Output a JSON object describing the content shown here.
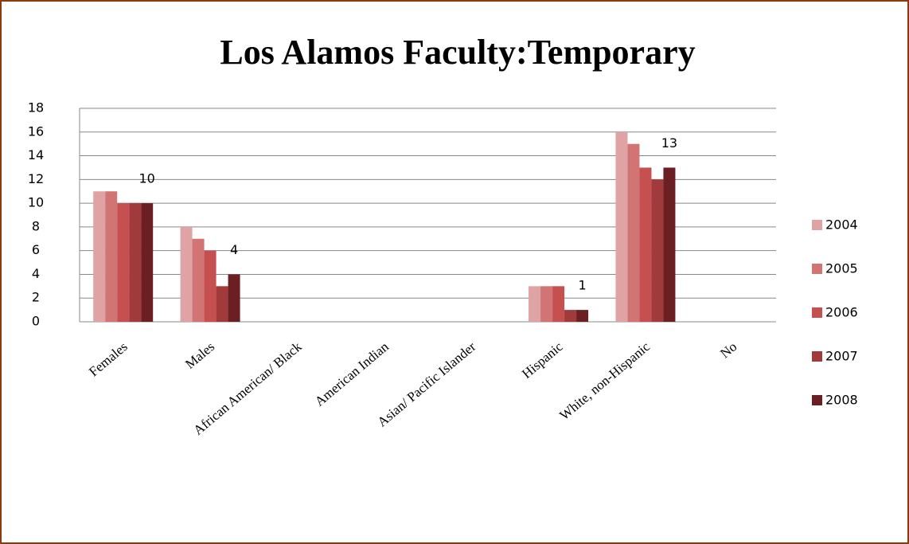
{
  "chart_data": {
    "type": "bar",
    "title": "Los Alamos Faculty:Temporary",
    "categories": [
      "Females",
      "Males",
      "African American/ Black",
      "American Indian",
      "Asian/ Pacific Islander",
      "Hispanic",
      "White, non-Hispanic",
      "No"
    ],
    "series": [
      {
        "name": "2004",
        "color": "#e0a3a3",
        "values": [
          11,
          8,
          0,
          0,
          0,
          3,
          16,
          0
        ]
      },
      {
        "name": "2005",
        "color": "#d27474",
        "values": [
          11,
          7,
          0,
          0,
          0,
          3,
          15,
          0
        ]
      },
      {
        "name": "2006",
        "color": "#c65050",
        "values": [
          10,
          6,
          0,
          0,
          0,
          3,
          13,
          0
        ]
      },
      {
        "name": "2007",
        "color": "#a13a3a",
        "values": [
          10,
          3,
          0,
          0,
          0,
          1,
          12,
          0
        ]
      },
      {
        "name": "2008",
        "color": "#6c1f22",
        "values": [
          10,
          4,
          0,
          0,
          0,
          1,
          13,
          0
        ],
        "value_labels": [
          "10",
          "4",
          null,
          null,
          null,
          "1",
          "13",
          null
        ]
      }
    ],
    "ylim": [
      0,
      18
    ],
    "yticks": [
      0,
      2,
      4,
      6,
      8,
      10,
      12,
      14,
      16,
      18
    ],
    "grid": true,
    "legend": "right"
  }
}
